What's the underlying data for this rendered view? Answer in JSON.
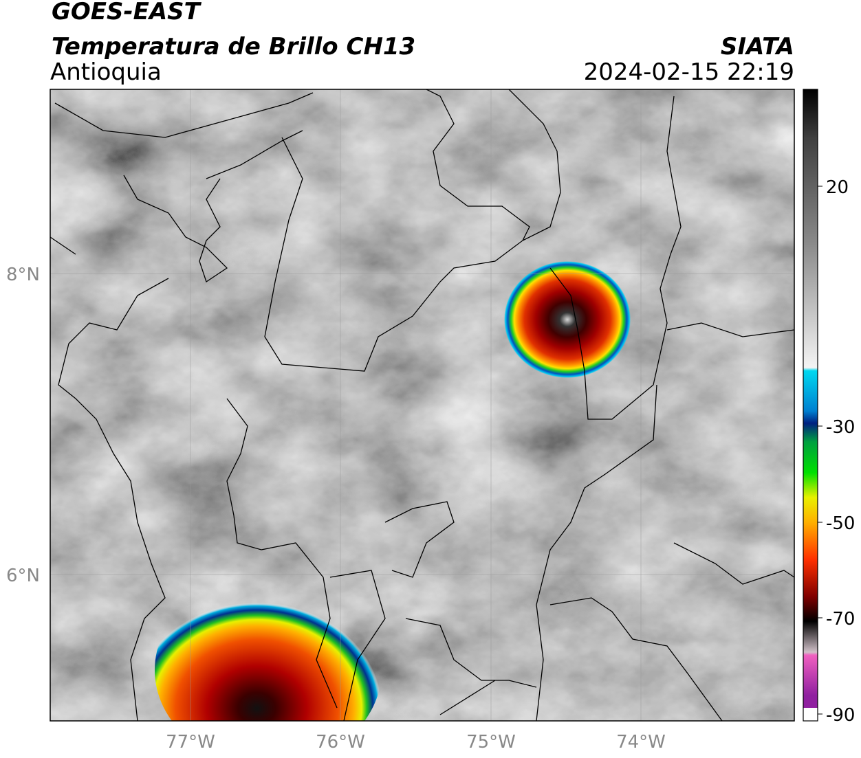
{
  "header": {
    "title": "GOES-EAST",
    "subtitle": "Temperatura de Brillo CH13",
    "region": "Antioquia",
    "source": "SIATA",
    "timestamp": "2024-02-15 22:19"
  },
  "map": {
    "lat_labels": [
      "8°N",
      "6°N"
    ],
    "lon_labels": [
      "77°W",
      "76°W",
      "75°W",
      "74°W"
    ]
  },
  "colorbar": {
    "tick_labels": [
      20,
      -30,
      -50,
      -70,
      -90
    ]
  }
}
